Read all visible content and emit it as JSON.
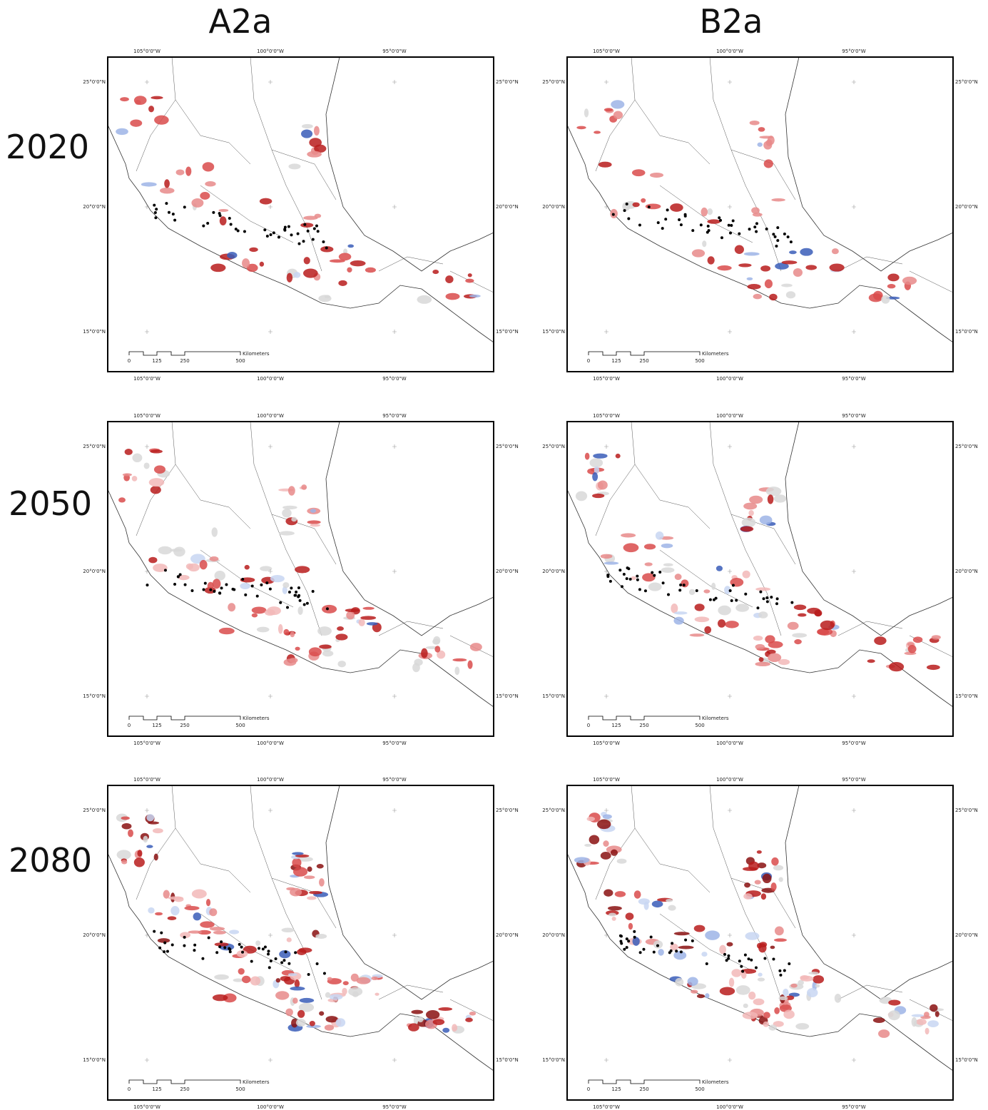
{
  "columns": [
    "A2a",
    "B2a"
  ],
  "rows": [
    "2020",
    "2050",
    "2080"
  ],
  "map": {
    "lon_labels": [
      "105°0'0\"W",
      "100°0'0\"W",
      "95°0'0\"W"
    ],
    "lat_labels": [
      "25°0'0\"N",
      "20°0'0\"N",
      "15°0'0\"N"
    ],
    "scale_labels": [
      "0",
      "125",
      "250",
      "500"
    ],
    "scale_unit": "Kilometers"
  }
}
